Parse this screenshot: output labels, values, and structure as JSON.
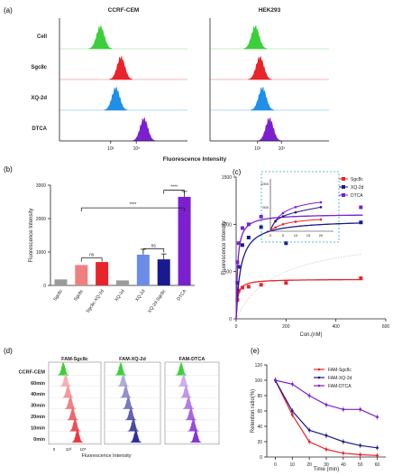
{
  "panel_labels": {
    "a": "(a)",
    "b": "(b)",
    "c": "(c)",
    "d": "(d)",
    "e": "(e)"
  },
  "colors": {
    "Cell": "#3ccf3c",
    "Sgc8c": "#e8232a",
    "XQ-2d": "#1f8fe8",
    "DTCA": "#7b1fd1",
    "navy": "#1a1a8e",
    "grey": "#9a9a9a",
    "teal": "#0aa3b8",
    "orange": "#ef8f2a"
  },
  "chart_data": [
    {
      "id": "a",
      "type": "histogram",
      "titles": [
        "CCRF-CEM",
        "HEK293"
      ],
      "rows": [
        "Cell",
        "Sgc8c",
        "XQ-2d",
        "DTCA"
      ],
      "xlabel": "Fluorescence Intensity",
      "xscale": "log",
      "xlim": [
        1,
        100000
      ],
      "ticks": [
        "10²",
        "10³"
      ],
      "peaks_log10": {
        "CCRF-CEM": [
          1.6,
          2.4,
          2.2,
          3.3
        ],
        "HEK293": [
          1.9,
          2.1,
          2.2,
          2.5
        ]
      }
    },
    {
      "id": "b",
      "type": "bar",
      "ylabel": "Fluorescence Intensity",
      "ylim": [
        0,
        3000
      ],
      "yticks": [
        "0",
        "1000",
        "2000",
        "3000"
      ],
      "categories": [
        "Sgc8c",
        "Sgc8c-XQ-2d",
        "XQ-2d",
        "XQ-2d-Sgc8c",
        "DTCA"
      ],
      "ungrouped_categories": [
        "Sgc8c",
        "Sgc8c-XQ-2d"
      ],
      "groups": [
        [
          "Sgc8c",
          "Sgc8c"
        ],
        [
          "Sgc8c-XQ-2d",
          "XQ-2d"
        ],
        [
          "XQ-2d",
          "XQ-2d"
        ],
        [
          "XQ-2d-Sgc8c",
          "XQ-2d-Sgc8c"
        ],
        [
          "DTCA",
          "DTCA"
        ]
      ],
      "bars": [
        {
          "label": "Sgc8c",
          "value": 180,
          "color": "#9a9a9a"
        },
        {
          "label": "Sgc8c",
          "value": 610,
          "color": "#f08080"
        },
        {
          "label": "Sgc8c-XQ-2d",
          "value": 700,
          "color": "#e8232a"
        },
        {
          "label": "XQ-2d",
          "value": 150,
          "color": "#9a9a9a"
        },
        {
          "label": "XQ-2d",
          "value": 920,
          "color": "#6a8ce8"
        },
        {
          "label": "XQ-2d-Sgc8c",
          "value": 780,
          "color": "#1a1a8e"
        },
        {
          "label": "DTCA",
          "value": 2650,
          "color": "#7b1fd1"
        }
      ],
      "annotations": [
        "ns",
        "ns",
        "****",
        "****"
      ]
    },
    {
      "id": "c",
      "type": "scatter",
      "xlabel": "Con.(nM)",
      "ylabel": "Fluorescence Intensity",
      "xlim": [
        0,
        600
      ],
      "ylim": [
        0,
        1500
      ],
      "xticks": [
        "0",
        "200",
        "400",
        "600"
      ],
      "yticks": [
        "0",
        "500",
        "1000",
        "1500"
      ],
      "legend": "top-right",
      "series": [
        {
          "name": "Sgc8c",
          "color": "#e8232a",
          "x": [
            5,
            10,
            25,
            50,
            100,
            200,
            500
          ],
          "y": [
            200,
            300,
            330,
            340,
            360,
            380,
            430
          ],
          "fit": {
            "Bmax": 420,
            "Kd": 6
          }
        },
        {
          "name": "XQ-2d",
          "color": "#1a1a8e",
          "x": [
            5,
            10,
            25,
            50,
            100,
            200,
            500
          ],
          "y": [
            380,
            550,
            780,
            860,
            970,
            800,
            1020
          ],
          "fit": {
            "Bmax": 1050,
            "Kd": 18
          }
        },
        {
          "name": "DTCA",
          "color": "#7b1fd1",
          "x": [
            5,
            10,
            25,
            50,
            100,
            500
          ],
          "y": [
            600,
            800,
            960,
            1000,
            1080,
            1180
          ],
          "fit": {
            "Bmax": 1110,
            "Kd": 6
          }
        }
      ],
      "inset": {
        "xticks": [
          "0",
          "5",
          "10",
          "15",
          "20"
        ],
        "yticks": [
          "0",
          "500",
          "1000"
        ],
        "xlim": [
          0,
          25
        ],
        "ylim": [
          0,
          1100
        ]
      }
    },
    {
      "id": "d",
      "type": "histogram",
      "titles": [
        "FAM-Sgc8c",
        "FAM-XQ-2d",
        "FAM-DTCA"
      ],
      "rows": [
        "CCRF-CEM",
        "60min",
        "40min",
        "30min",
        "20min",
        "10min",
        "0min"
      ],
      "xlabel": "Fluorescence Intensity",
      "ticks": [
        "0",
        "10³",
        "10⁵"
      ]
    },
    {
      "id": "e",
      "type": "line",
      "xlabel": "Time (min)",
      "ylabel": "Retention ratio(%)",
      "xlim": [
        -5,
        65
      ],
      "ylim": [
        0,
        120
      ],
      "xticks": [
        "0",
        "10",
        "20",
        "30",
        "40",
        "50",
        "60"
      ],
      "yticks": [
        "0",
        "20",
        "40",
        "60",
        "80",
        "100",
        "120"
      ],
      "x": [
        0,
        10,
        20,
        30,
        40,
        50,
        60
      ],
      "legend": "top-right",
      "series": [
        {
          "name": "FAM-Sgc8c",
          "color": "#e8232a",
          "values": [
            100,
            55,
            20,
            10,
            5,
            3,
            2
          ]
        },
        {
          "name": "FAM-XQ-2d",
          "color": "#1a1a8e",
          "values": [
            100,
            60,
            35,
            28,
            20,
            15,
            12
          ]
        },
        {
          "name": "FAM-DTCA",
          "color": "#7b1fd1",
          "values": [
            100,
            95,
            80,
            68,
            62,
            62,
            52
          ]
        }
      ]
    }
  ]
}
